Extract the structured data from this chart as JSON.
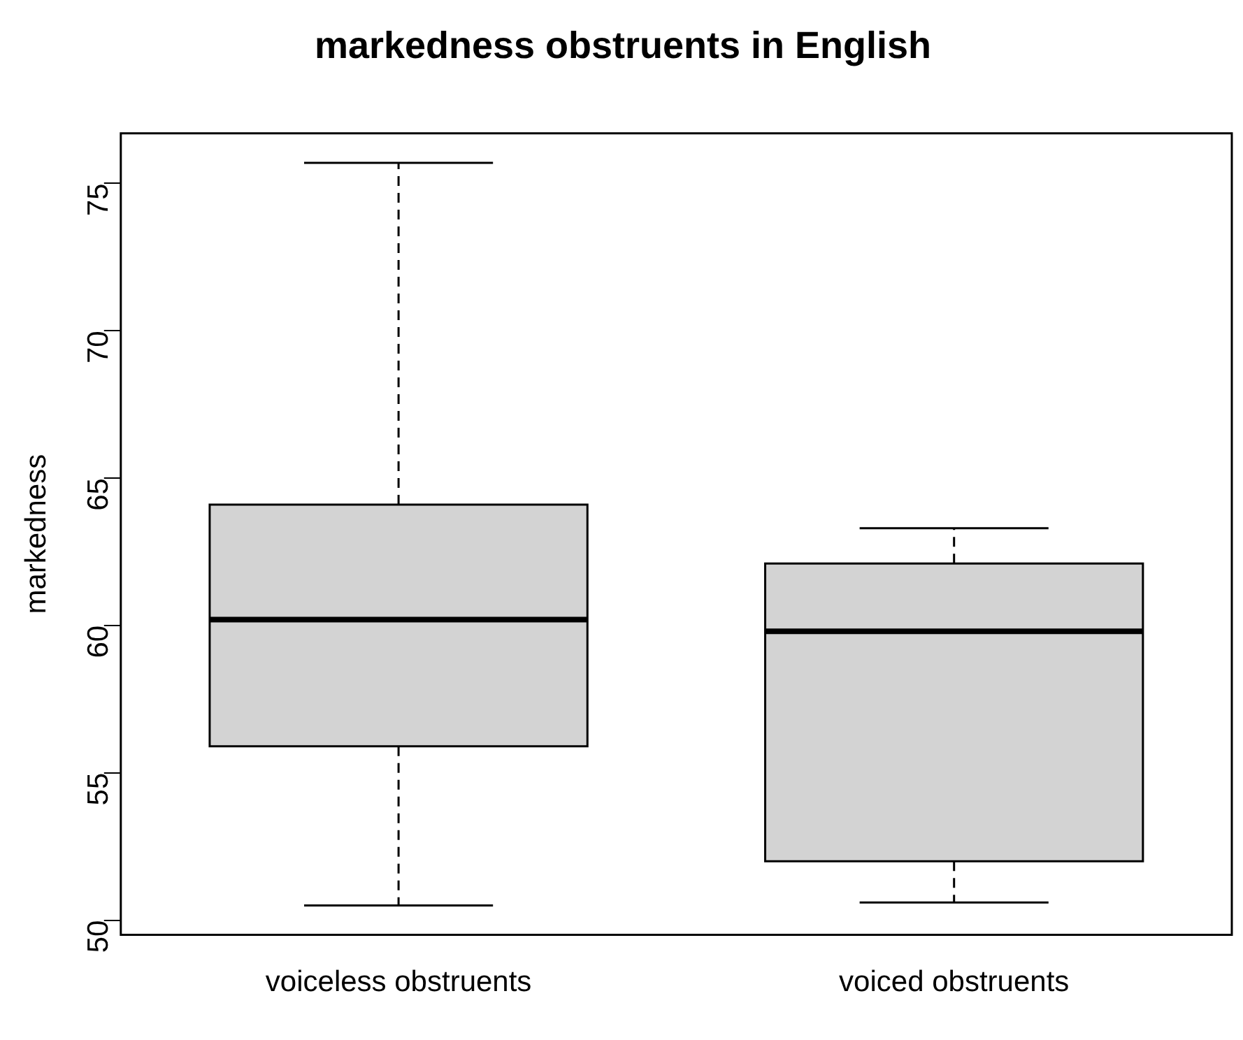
{
  "chart_data": {
    "type": "box",
    "title": "markedness obstruents in English",
    "ylabel": "markedness",
    "categories": [
      "voiceless obstruents",
      "voiced obstruents"
    ],
    "boxes": [
      {
        "low": 50.5,
        "q1": 55.9,
        "median": 60.2,
        "q3": 64.1,
        "high": 75.7
      },
      {
        "low": 50.6,
        "q1": 52.0,
        "median": 59.8,
        "q3": 62.1,
        "high": 63.3
      }
    ],
    "color": "#d3d3d3",
    "ylim": [
      49.5,
      76.7
    ],
    "yticks": [
      50,
      55,
      60,
      65,
      70,
      75
    ],
    "grid": false,
    "legend": false
  }
}
